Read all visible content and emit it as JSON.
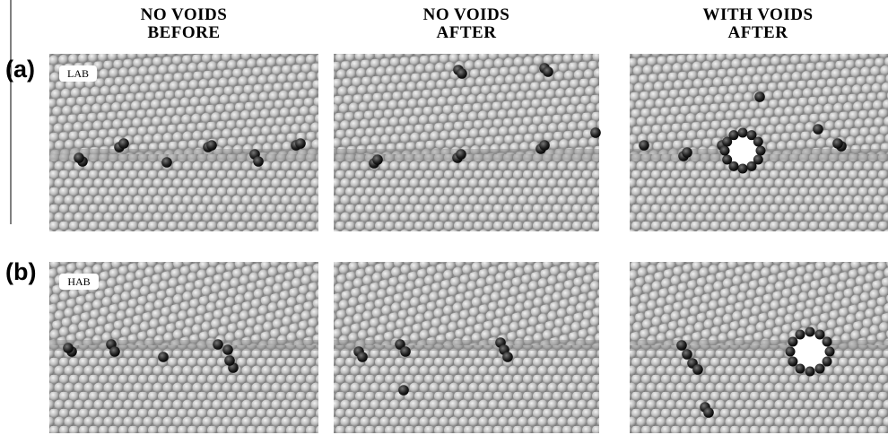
{
  "columns": [
    {
      "line1": "NO VOIDS",
      "line2": "BEFORE"
    },
    {
      "line1": "NO VOIDS",
      "line2": "AFTER"
    },
    {
      "line1": "WITH VOIDS",
      "line2": "AFTER"
    }
  ],
  "rows": [
    {
      "label": "(a)",
      "tag": "LAB"
    },
    {
      "label": "(b)",
      "tag": "HAB"
    }
  ]
}
